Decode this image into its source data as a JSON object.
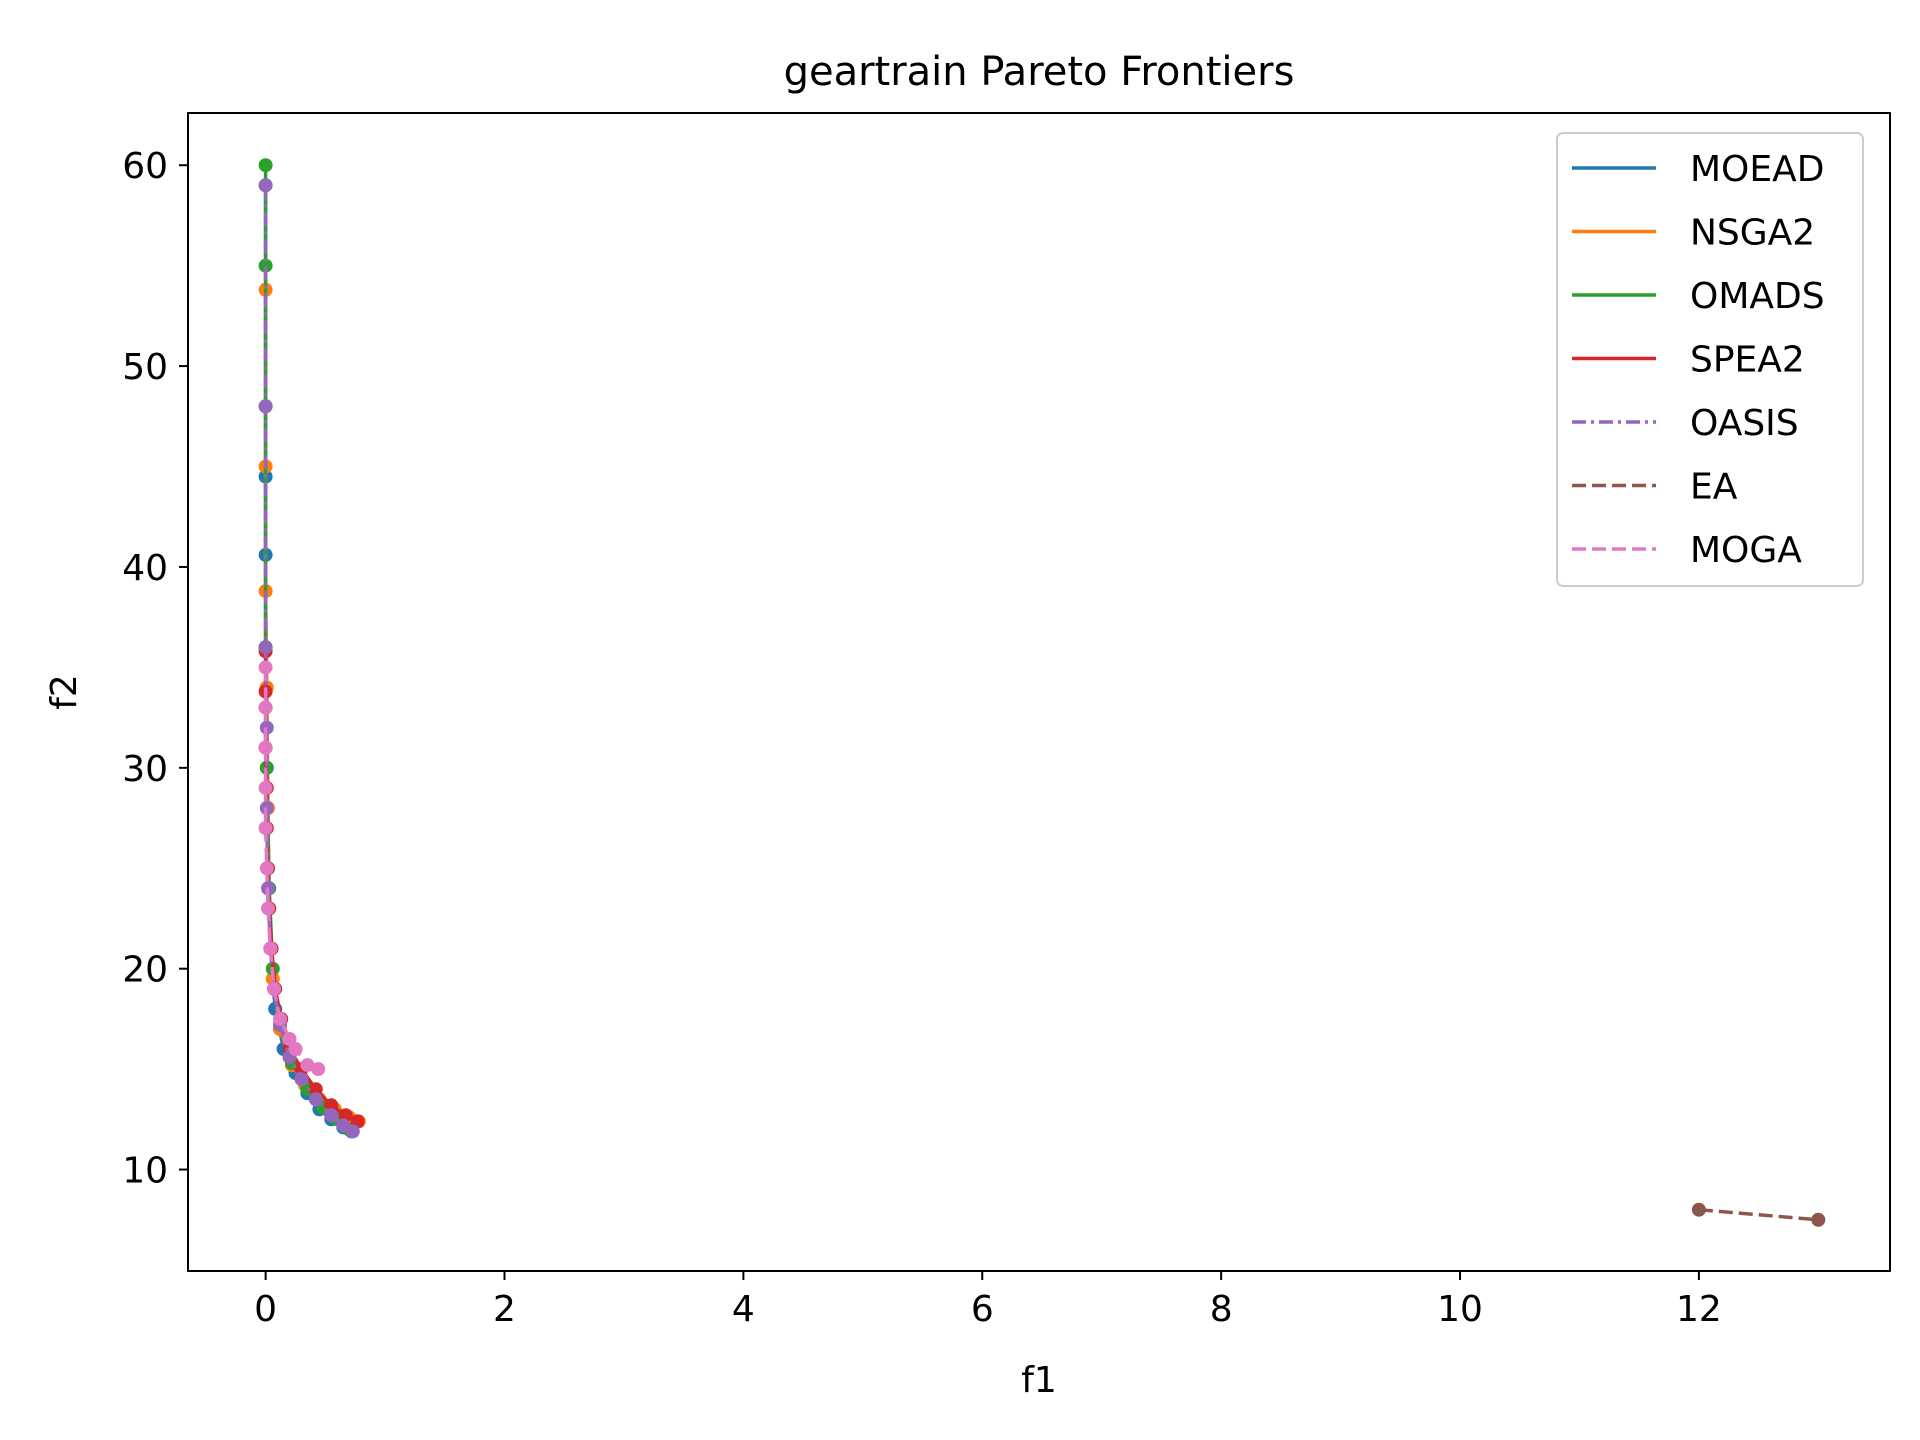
{
  "chart_data": {
    "type": "line",
    "title": "geartrain Pareto Frontiers",
    "xlabel": "f1",
    "ylabel": "f2",
    "xlim": [
      -0.65,
      13.6
    ],
    "ylim": [
      4.95,
      62.6
    ],
    "xticks": [
      0,
      2,
      4,
      6,
      8,
      10,
      12
    ],
    "yticks": [
      10,
      20,
      30,
      40,
      50,
      60
    ],
    "grid": false,
    "legend_position": "top-right",
    "series": [
      {
        "name": "MOEAD",
        "color": "#1f77b4",
        "linestyle": "solid",
        "points": [
          [
            0.0,
            59.0
          ],
          [
            0.0,
            44.5
          ],
          [
            0.0,
            40.6
          ],
          [
            0.0,
            36.0
          ],
          [
            0.01,
            30.0
          ],
          [
            0.02,
            25.0
          ],
          [
            0.04,
            21.0
          ],
          [
            0.08,
            18.0
          ],
          [
            0.15,
            16.0
          ],
          [
            0.25,
            14.8
          ],
          [
            0.35,
            13.8
          ],
          [
            0.45,
            13.0
          ],
          [
            0.55,
            12.5
          ],
          [
            0.65,
            12.1
          ],
          [
            0.72,
            11.9
          ]
        ]
      },
      {
        "name": "NSGA2",
        "color": "#ff7f0e",
        "linestyle": "solid",
        "points": [
          [
            0.0,
            53.8
          ],
          [
            0.0,
            45.0
          ],
          [
            0.0,
            38.8
          ],
          [
            0.01,
            34.0
          ],
          [
            0.02,
            28.0
          ],
          [
            0.03,
            23.0
          ],
          [
            0.06,
            19.5
          ],
          [
            0.12,
            17.0
          ],
          [
            0.22,
            15.2
          ],
          [
            0.33,
            14.2
          ],
          [
            0.45,
            13.5
          ],
          [
            0.58,
            13.0
          ],
          [
            0.7,
            12.6
          ],
          [
            0.78,
            12.4
          ]
        ]
      },
      {
        "name": "OMADS",
        "color": "#2ca02c",
        "linestyle": "solid",
        "points": [
          [
            0.0,
            60.0
          ],
          [
            0.0,
            55.0
          ],
          [
            0.0,
            48.0
          ],
          [
            0.0,
            36.0
          ],
          [
            0.01,
            30.0
          ],
          [
            0.03,
            24.0
          ],
          [
            0.06,
            20.0
          ],
          [
            0.12,
            17.2
          ],
          [
            0.22,
            15.3
          ],
          [
            0.35,
            14.0
          ],
          [
            0.48,
            13.1
          ],
          [
            0.6,
            12.5
          ],
          [
            0.7,
            12.0
          ]
        ]
      },
      {
        "name": "SPEA2",
        "color": "#d62728",
        "linestyle": "solid",
        "points": [
          [
            0.0,
            35.8
          ],
          [
            0.0,
            33.8
          ],
          [
            0.0,
            33.0
          ],
          [
            0.0,
            31.0
          ],
          [
            0.01,
            29.0
          ],
          [
            0.01,
            27.0
          ],
          [
            0.02,
            25.0
          ],
          [
            0.03,
            23.0
          ],
          [
            0.05,
            21.0
          ],
          [
            0.08,
            19.0
          ],
          [
            0.13,
            17.5
          ],
          [
            0.2,
            16.0
          ],
          [
            0.3,
            15.0
          ],
          [
            0.42,
            14.0
          ],
          [
            0.55,
            13.2
          ],
          [
            0.67,
            12.7
          ],
          [
            0.77,
            12.4
          ]
        ]
      },
      {
        "name": "OASIS",
        "color": "#9467bd",
        "linestyle": "dashdot",
        "points": [
          [
            0.0,
            59.0
          ],
          [
            0.0,
            48.0
          ],
          [
            0.0,
            36.0
          ],
          [
            0.01,
            32.0
          ],
          [
            0.01,
            28.0
          ],
          [
            0.02,
            24.0
          ],
          [
            0.04,
            21.0
          ],
          [
            0.07,
            19.0
          ],
          [
            0.12,
            17.2
          ],
          [
            0.2,
            15.6
          ],
          [
            0.3,
            14.5
          ],
          [
            0.42,
            13.5
          ],
          [
            0.55,
            12.7
          ],
          [
            0.65,
            12.2
          ],
          [
            0.73,
            11.9
          ]
        ]
      },
      {
        "name": "EA",
        "color": "#8c564b",
        "linestyle": "dashed",
        "points": [
          [
            12.0,
            8.0
          ],
          [
            13.0,
            7.5
          ]
        ]
      },
      {
        "name": "MOGA",
        "color": "#e377c2",
        "linestyle": "dashed",
        "points": [
          [
            0.0,
            35.0
          ],
          [
            0.0,
            33.0
          ],
          [
            0.0,
            31.0
          ],
          [
            0.0,
            29.0
          ],
          [
            0.0,
            27.0
          ],
          [
            0.01,
            25.0
          ],
          [
            0.02,
            23.0
          ],
          [
            0.04,
            21.0
          ],
          [
            0.07,
            19.0
          ],
          [
            0.12,
            17.5
          ],
          [
            0.2,
            16.5
          ],
          [
            0.25,
            16.0
          ],
          [
            0.35,
            15.2
          ],
          [
            0.44,
            15.0
          ]
        ]
      }
    ]
  }
}
